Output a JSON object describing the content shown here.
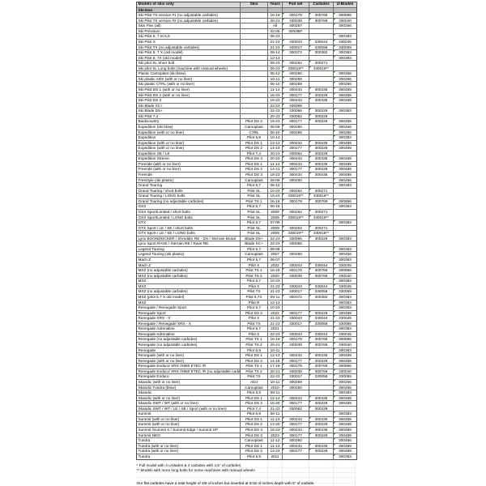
{
  "accent_colors": {
    "header_bg": "#d9d9d9",
    "section_bg": "#bfbfbf",
    "flag_green": "#2e7d39",
    "grid": "#6e6e6e"
  },
  "table": {
    "columns": [
      "Models of skis only",
      "Skis",
      "Years",
      "Full set",
      "Carbides",
      "U-Blades"
    ],
    "section": "Ski-Doo",
    "rows": [
      {
        "model": "Ski Pilot TS version #1 (no adjustable carbides)",
        "skis": "",
        "years": "16-19",
        "full_set": "300178",
        "carbides": "300769",
        "u_blades": "300856"
      },
      {
        "model": "Ski Pilot TS version #2 (no adjustable carbides)",
        "skis": "",
        "years": "20-21",
        "full_set": "330039",
        "carbides": "300769",
        "u_blades": "330040"
      },
      {
        "model": "Skis Flex (all)",
        "skis": "",
        "years": "All",
        "full_set": "300257",
        "carbides": "",
        "u_blades": "300256"
      },
      {
        "model": "Ski Précision",
        "skis": "",
        "years": "02-06",
        "full_set": "300288*",
        "carbides": "",
        "u_blades": ""
      },
      {
        "model": "Ski Pilot 5, 7 et 6,9",
        "skis": "",
        "years": "06-23",
        "full_set": "",
        "carbides": "",
        "u_blades": "300383"
      },
      {
        "model": "Ski Pilot X",
        "skis": "",
        "years": "21-23",
        "full_set": "330043",
        "carbides": "330044",
        "u_blades": "330045"
      },
      {
        "model": "Ski Pilot TX (no adjustable carbides)",
        "skis": "",
        "years": "21-23",
        "full_set": "330017",
        "carbides": "330058",
        "u_blades": "330059"
      },
      {
        "model": "Ski Pilot 5, 7 X (old model)",
        "skis": "",
        "years": "08-14",
        "full_set": "300372",
        "carbides": "300382",
        "u_blades": "300383"
      },
      {
        "model": "Ski Pilot 5, 7X (old model)",
        "skis": "",
        "years": "12-13",
        "full_set": "",
        "carbides": "",
        "u_blades": "300383"
      },
      {
        "model": "Ski pilot SL Short bolt",
        "skis": "",
        "years": "09-23",
        "full_set": "300262",
        "carbides": "300271",
        "u_blades": ""
      },
      {
        "model": "Ski pilot SL Long bolts (machine with manual wheels)",
        "skis": "",
        "years": "09-23",
        "full_set": "330019**",
        "carbides": "330018**",
        "u_blades": ""
      },
      {
        "model": "Plastic Camoplast (ski blow)",
        "skis": "",
        "years": "05-12",
        "full_set": "300260",
        "carbides": "",
        "u_blades": "300456"
      },
      {
        "model": "Ski plastic ADS (with or no liner)",
        "skis": "",
        "years": "10-11",
        "full_set": "300259",
        "carbides": "",
        "u_blades": "300256"
      },
      {
        "model": "Ski plastic CTRL (with or no liner)",
        "skis": "",
        "years": "06-10",
        "full_set": "300259",
        "carbides": "",
        "u_blades": "300256"
      },
      {
        "model": "Ski Pilot DS 1 (with or no liner)",
        "skis": "",
        "years": "11-14",
        "full_set": "300434",
        "carbides": "300435",
        "u_blades": "300489"
      },
      {
        "model": "Ski Pilot DS 2 (with or no liner)",
        "skis": "",
        "years": "15-23",
        "full_set": "300177",
        "carbides": "300229",
        "u_blades": "300489"
      },
      {
        "model": "Ski Pilot DS 3",
        "skis": "",
        "years": "15-23",
        "full_set": "300434",
        "carbides": "300435",
        "u_blades": "300489"
      },
      {
        "model": "Ski Blade XC+",
        "skis": "",
        "years": "22-23",
        "full_set": "330065",
        "carbides": "",
        "u_blades": ""
      },
      {
        "model": "Ski Blade DS+",
        "skis": "",
        "years": "22-23",
        "full_set": "330066",
        "carbides": "300229",
        "u_blades": "300383"
      },
      {
        "model": "Ski Pilot 7,4",
        "skis": "",
        "years": "20-23",
        "full_set": "330062",
        "carbides": "300229",
        "u_blades": ""
      },
      {
        "model": "Backcountry",
        "skis": "Pilot DS 2",
        "years": "19-23",
        "full_set": "300177",
        "carbides": "300229",
        "u_blades": "300489"
      },
      {
        "model": "Expedition (ski blow)",
        "skis": "Camoplast",
        "years": "05-09",
        "full_set": "300260",
        "carbides": "",
        "u_blades": "300456"
      },
      {
        "model": "Expedition (with or no liner)",
        "skis": "CTRL",
        "years": "06-10",
        "full_set": "300259",
        "carbides": "",
        "u_blades": "300256"
      },
      {
        "model": "Expedition",
        "skis": "Pilot 6,9",
        "years": "10-14",
        "full_set": "",
        "carbides": "",
        "u_blades": "300383"
      },
      {
        "model": "Expedition (with or no liner)",
        "skis": "Pilot DS 1",
        "years": "12-13",
        "full_set": "300434",
        "carbides": "300435",
        "u_blades": "300489"
      },
      {
        "model": "Expedition (with or no liner)",
        "skis": "Pilot DS 2",
        "years": "14-23",
        "full_set": "300177",
        "carbides": "300229",
        "u_blades": "300489"
      },
      {
        "model": "Expedition SE / LE",
        "skis": "Pilot 7,4",
        "years": "20-23",
        "full_set": "330062",
        "carbides": "300229",
        "u_blades": ""
      },
      {
        "model": "Expedition Xtreme",
        "skis": "Pilot DS 3",
        "years": "20-23",
        "full_set": "300434",
        "carbides": "300435",
        "u_blades": "300489"
      },
      {
        "model": "Freeride (with or no liner)",
        "skis": "Pilot DS 1",
        "years": "11-13",
        "full_set": "300434",
        "carbides": "300435",
        "u_blades": "300489"
      },
      {
        "model": "Freeride (with or no liner)",
        "skis": "Pilot DS 2",
        "years": "14-21",
        "full_set": "300177",
        "carbides": "300229",
        "u_blades": "300489"
      },
      {
        "model": "Freeride",
        "skis": "Pilot DS 3",
        "years": "18-23",
        "full_set": "300434",
        "carbides": "300435",
        "u_blades": "300489"
      },
      {
        "model": "Freestyle (ski plastic)",
        "skis": "Camoplast",
        "years": "06-09",
        "full_set": "300260",
        "carbides": "",
        "u_blades": "300456"
      },
      {
        "model": "Grand Touring",
        "skis": "Pilot 5,7",
        "years": "06-10",
        "full_set": "",
        "carbides": "",
        "u_blades": "300383"
      },
      {
        "model": "Grand Touring / short bolts",
        "skis": "Pilot SL",
        "years": "10-23",
        "full_set": "300262",
        "carbides": "300271",
        "u_blades": ""
      },
      {
        "model": "Grand Touring / LONG bolts",
        "skis": "Pilot SL",
        "years": "10-23",
        "full_set": "330019**",
        "carbides": "330018**",
        "u_blades": ""
      },
      {
        "model": "Grand Touring (no adjustable carbides)",
        "skis": "Pilot TS 1",
        "years": "16-18",
        "full_set": "300178",
        "carbides": "300769",
        "u_blades": "300856"
      },
      {
        "model": "GSX",
        "skis": "Pilot 5,7",
        "years": "06-15",
        "full_set": "",
        "carbides": "",
        "u_blades": "300383"
      },
      {
        "model": "GSX Sport/Limited / short bolts",
        "skis": "Pilot SL",
        "years": "2009",
        "full_set": "300262",
        "carbides": "300271",
        "u_blades": ""
      },
      {
        "model": "GSX Sport/Limited / LONG bolts",
        "skis": "Pilot SL",
        "years": "2009",
        "full_set": "330019**",
        "carbides": "330018**",
        "u_blades": ""
      },
      {
        "model": "GTX",
        "skis": "Pilot 5,7",
        "years": "07-09",
        "full_set": "",
        "carbides": "",
        "u_blades": "300383"
      },
      {
        "model": "GTX Sport / LE / SE / short bolts",
        "skis": "Pilot SL",
        "years": "2009",
        "full_set": "300262",
        "carbides": "300271",
        "u_blades": ""
      },
      {
        "model": "GTX Sport / LE / SE / LONG bolts",
        "skis": "Pilot SL",
        "years": "2009",
        "full_set": "330019**",
        "carbides": "330018**",
        "u_blades": ""
      },
      {
        "model": "Lynx BOONDOCKER / Shredder RE - DS / Xterrain Brutal",
        "skis": "Blade DS+",
        "years": "22-23",
        "full_set": "330066",
        "carbides": "300229",
        "u_blades": "300383"
      },
      {
        "model": "Lynx Sport RAVE / Xterrain RE / Rave RE",
        "skis": "Blade XC+",
        "years": "22-23",
        "full_set": "330065",
        "carbides": "",
        "u_blades": ""
      },
      {
        "model": "Legend Touring",
        "skis": "Pilot 5,7",
        "years": "08-09",
        "full_set": "",
        "carbides": "",
        "u_blades": "300383"
      },
      {
        "model": "Legend Touring (ski plastic)",
        "skis": "Camoplast",
        "years": "2007",
        "full_set": "300260",
        "carbides": "",
        "u_blades": "300456"
      },
      {
        "model": "Mach Z",
        "skis": "Pilot 5,7",
        "years": "06-07",
        "full_set": "",
        "carbides": "",
        "u_blades": "300383"
      },
      {
        "model": "Mach Z",
        "skis": "Pilot X",
        "years": "2022",
        "full_set": "330043",
        "carbides": "330044",
        "u_blades": "330045"
      },
      {
        "model": "MXZ (no adjustable carbides)",
        "skis": "Pilot TS 1",
        "years": "16-19",
        "full_set": "300178",
        "carbides": "300769",
        "u_blades": "300856"
      },
      {
        "model": "MXZ (no adjustable carbides)",
        "skis": "Pilot TS 2",
        "years": "2020",
        "full_set": "330039",
        "carbides": "300769",
        "u_blades": "330040"
      },
      {
        "model": "MXZ",
        "skis": "Pilot 5,7",
        "years": "10-23",
        "full_set": "",
        "carbides": "",
        "u_blades": "300383"
      },
      {
        "model": "MXZ",
        "skis": "Pilot X",
        "years": "21-23",
        "full_set": "330043",
        "carbides": "330044",
        "u_blades": "330045"
      },
      {
        "model": "MXZ (no adjustable carbides)",
        "skis": "Pilot TX",
        "years": "21-23",
        "full_set": "330017",
        "carbides": "330058",
        "u_blades": "330059"
      },
      {
        "model": "MXZ (pilot 5,7 X old model)",
        "skis": "Pilot 5,7X",
        "years": "09-11",
        "full_set": "300372",
        "carbides": "300382",
        "u_blades": "300383"
      },
      {
        "model": "MXZ",
        "skis": "Pilot R",
        "years": "12-13",
        "full_set": "",
        "carbides": "",
        "u_blades": "300383"
      },
      {
        "model": "Renegade / Renegade Sport",
        "skis": "Pilot 5,7",
        "years": "10-23",
        "full_set": "",
        "carbides": "",
        "u_blades": "300383"
      },
      {
        "model": "Renegade Sport",
        "skis": "Pilot DS 2",
        "years": "2022",
        "full_set": "300177",
        "carbides": "300229",
        "u_blades": "300489"
      },
      {
        "model": "Renegade XRS - X",
        "skis": "Pilot X",
        "years": "21-23",
        "full_set": "330043",
        "carbides": "330044",
        "u_blades": "330045"
      },
      {
        "model": "Renegade / Renegade XRS - X",
        "skis": "Pilot TX",
        "years": "21-23",
        "full_set": "330017",
        "carbides": "330058",
        "u_blades": "330059"
      },
      {
        "model": "Renegade Adrenaline",
        "skis": "Pilot 5,7",
        "years": "2021",
        "full_set": "",
        "carbides": "",
        "u_blades": "300383"
      },
      {
        "model": "Renegade Adrenaline",
        "skis": "Pilot X",
        "years": "22-23",
        "full_set": "330043",
        "carbides": "330044",
        "u_blades": "330045"
      },
      {
        "model": "Renegade (no adjustable carbides)",
        "skis": "Pilot TS 1",
        "years": "16-19",
        "full_set": "300178",
        "carbides": "300769",
        "u_blades": "300856"
      },
      {
        "model": "Renegade (no adjustable carbides)",
        "skis": "Pilot TS 2",
        "years": "20-21",
        "full_set": "330039",
        "carbides": "300769",
        "u_blades": "330040"
      },
      {
        "model": "Renegade",
        "skis": "Pilot 6,9",
        "years": "10-11",
        "full_set": "",
        "carbides": "",
        "u_blades": "300383"
      },
      {
        "model": "Renegade (with or no liner)",
        "skis": "Pilot DS 1",
        "years": "12-13",
        "full_set": "300434",
        "carbides": "300435",
        "u_blades": "300489"
      },
      {
        "model": "Renegade (with or no liner)",
        "skis": "Pilot DS 2",
        "years": "14-18",
        "full_set": "300177",
        "carbides": "300229",
        "u_blades": "300489"
      },
      {
        "model": "Renegade Enduro/ XRS /X850 ETEC /R",
        "skis": "Pilot TS 1",
        "years": "17-19",
        "full_set": "300178",
        "carbides": "300769",
        "u_blades": "300856"
      },
      {
        "model": "Renegade Enduro/ XRS /X850 ETEC /R (no adjustable carbides)",
        "skis": "Pilot TS 2",
        "years": "20-21",
        "full_set": "330039",
        "carbides": "300769",
        "u_blades": "330040"
      },
      {
        "model": "Renegade Enduro",
        "skis": "Pilot TX",
        "years": "22-23",
        "full_set": "330017",
        "carbides": "330058",
        "u_blades": "330059"
      },
      {
        "model": "Skandic (with or no liner)",
        "skis": "ADJ",
        "years": "10-11",
        "full_set": "300259",
        "carbides": "",
        "u_blades": "300256"
      },
      {
        "model": "Skandic Tundra (blow)",
        "skis": "Camoplast",
        "years": "2010",
        "full_set": "300260",
        "carbides": "",
        "u_blades": "300456"
      },
      {
        "model": "Skandic",
        "skis": "Pilot 6,9",
        "years": "09-11",
        "full_set": "",
        "carbides": "",
        "u_blades": "300383"
      },
      {
        "model": "Skandic (with or no liner)",
        "skis": "Pilot DS 1",
        "years": "12-14",
        "full_set": "300434",
        "carbides": "300435",
        "u_blades": "300489"
      },
      {
        "model": "Skandic SWT / WT (with or no liner)",
        "skis": "Pilot DS 2",
        "years": "15-20",
        "full_set": "300177",
        "carbides": "300229",
        "u_blades": "300489"
      },
      {
        "model": "Skandic SWT / WT / LE / SE / Sport (with or no liner)",
        "skis": "Pilot 7,4",
        "years": "21-23",
        "full_set": "330062",
        "carbides": "300229",
        "u_blades": ""
      },
      {
        "model": "Summit",
        "skis": "Pilot 6,9",
        "years": "06-11",
        "full_set": "",
        "carbides": "",
        "u_blades": "300383"
      },
      {
        "model": "Summit (with or no liner)",
        "skis": "Pilot DS 1",
        "years": "11-13",
        "full_set": "300434",
        "carbides": "300435",
        "u_blades": "300489"
      },
      {
        "model": "Summit (with or no liner)",
        "skis": "Pilot DS 2",
        "years": "13-20",
        "full_set": "300177",
        "carbides": "300229",
        "u_blades": "300489"
      },
      {
        "model": "Summit /Summit X / Summit Edge / Summit SP",
        "skis": "Pilot DS 3",
        "years": "15-23",
        "full_set": "300434",
        "carbides": "300435",
        "u_blades": "300489"
      },
      {
        "model": "Summit NEO",
        "skis": "Pilot DS 2",
        "years": "2023",
        "full_set": "300177",
        "carbides": "300229",
        "u_blades": "300489"
      },
      {
        "model": "Tundra",
        "skis": "Camoplast",
        "years": "11-12",
        "full_set": "300260",
        "carbides": "",
        "u_blades": "300456"
      },
      {
        "model": "Tundra (with or no liner)",
        "skis": "Pilot DS 1",
        "years": "11-13",
        "full_set": "300434",
        "carbides": "300435",
        "u_blades": "300489"
      },
      {
        "model": "Tundra (with or no liner)",
        "skis": "Pilot DS 2",
        "years": "14-23",
        "full_set": "300177",
        "carbides": "300229",
        "u_blades": "300489"
      },
      {
        "model": "Tundra",
        "skis": "Pilot 6,9",
        "years": "2011",
        "full_set": "",
        "carbides": "",
        "u_blades": "300383"
      }
    ]
  },
  "footnotes": {
    "fn1": "* Full model with 4 u-blades & 4 carbides with 4,5\" of carbides",
    "fn2": "** Models with more long bolts for some machines with manual wheels",
    "fn3": "Our flat carbides have a total height of 3/8 of inches but inserted at 5/16 of inches depth with 6\" of carbide."
  }
}
